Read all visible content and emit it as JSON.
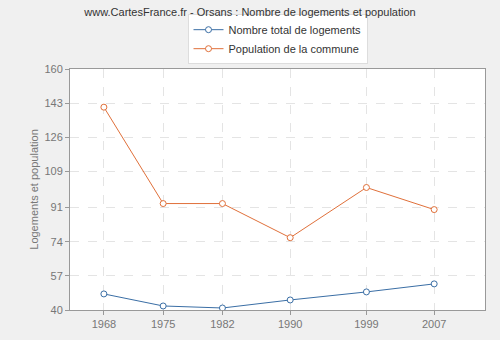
{
  "chart_data": {
    "type": "line",
    "title": "www.CartesFrance.fr - Orsans : Nombre de logements et population",
    "y_label": "Logements et population",
    "x": [
      1968,
      1975,
      1982,
      1990,
      1999,
      2007
    ],
    "series": [
      {
        "name": "Nombre total de logements",
        "color": "#3a6ea5",
        "marker": "circle",
        "values": [
          48,
          42,
          41,
          45,
          49,
          53
        ]
      },
      {
        "name": "Population de la commune",
        "color": "#e0703a",
        "marker": "circle",
        "values": [
          141,
          93,
          93,
          76,
          101,
          90
        ]
      }
    ],
    "xlim": [
      1964,
      2013
    ],
    "xticks": [
      1968,
      1975,
      1982,
      1990,
      1999,
      2007
    ],
    "ylim": [
      40,
      160
    ],
    "yticks": [
      40,
      57,
      74,
      91,
      109,
      126,
      143,
      160
    ],
    "grid": true,
    "legend": "top"
  }
}
